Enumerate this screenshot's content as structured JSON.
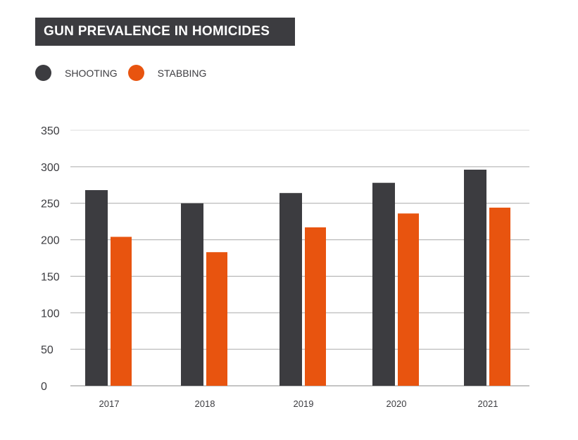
{
  "chart_data": {
    "type": "bar",
    "title": "GUN PREVALENCE IN HOMICIDES",
    "categories": [
      "2017",
      "2018",
      "2019",
      "2020",
      "2021"
    ],
    "series": [
      {
        "name": "SHOOTING",
        "color": "#3c3c40",
        "values": [
          268,
          250,
          264,
          278,
          296
        ]
      },
      {
        "name": "STABBING",
        "color": "#e8540f",
        "values": [
          204,
          183,
          217,
          236,
          244
        ]
      }
    ],
    "ylim": [
      0,
      350
    ],
    "yticks": [
      0,
      50,
      100,
      150,
      200,
      250,
      300,
      350
    ],
    "grid": true,
    "legend": "top-left"
  }
}
